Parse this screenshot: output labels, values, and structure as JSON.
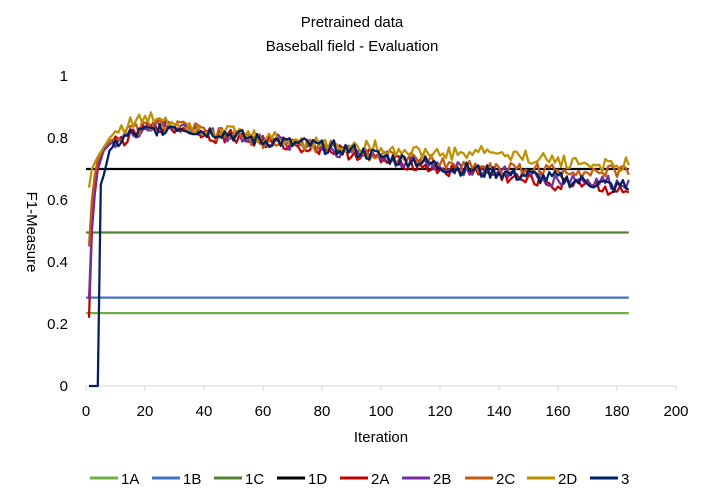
{
  "chart_data": {
    "type": "line",
    "title": "Pretrained data",
    "subtitle": "Baseball field - Evaluation",
    "xlabel": "Iteration",
    "ylabel": "F1-Measure",
    "xlim": [
      0,
      200
    ],
    "ylim": [
      0,
      1
    ],
    "x_ticks": [
      "0",
      "20",
      "40",
      "60",
      "80",
      "100",
      "120",
      "140",
      "160",
      "180",
      "200"
    ],
    "y_ticks": [
      "0",
      "0.2",
      "0.4",
      "0.6",
      "0.8",
      "1"
    ],
    "grid": false,
    "legend_position": "bottom",
    "series": [
      {
        "name": "1A",
        "color": "#70AD47",
        "x": [
          0,
          184
        ],
        "values": [
          0.235,
          0.235
        ]
      },
      {
        "name": "1B",
        "color": "#4472C4",
        "x": [
          0,
          184
        ],
        "values": [
          0.285,
          0.285
        ]
      },
      {
        "name": "1C",
        "color": "#548235",
        "x": [
          0,
          184
        ],
        "values": [
          0.495,
          0.495
        ]
      },
      {
        "name": "1D",
        "color": "#000000",
        "x": [
          0,
          184
        ],
        "values": [
          0.7,
          0.7
        ]
      },
      {
        "name": "2A",
        "color": "#C00000",
        "x": [
          1,
          2,
          3,
          4,
          6,
          8,
          10,
          15,
          20,
          25,
          30,
          35,
          40,
          45,
          50,
          55,
          60,
          65,
          70,
          75,
          80,
          85,
          90,
          95,
          100,
          105,
          110,
          115,
          120,
          125,
          130,
          135,
          140,
          145,
          150,
          155,
          160,
          165,
          170,
          175,
          180,
          182,
          184
        ],
        "values": [
          0.22,
          0.5,
          0.62,
          0.7,
          0.76,
          0.78,
          0.79,
          0.8,
          0.83,
          0.84,
          0.83,
          0.83,
          0.82,
          0.8,
          0.81,
          0.79,
          0.79,
          0.78,
          0.78,
          0.77,
          0.77,
          0.76,
          0.75,
          0.75,
          0.73,
          0.72,
          0.72,
          0.71,
          0.7,
          0.69,
          0.7,
          0.69,
          0.68,
          0.67,
          0.66,
          0.67,
          0.64,
          0.66,
          0.66,
          0.64,
          0.63,
          0.62,
          0.62
        ]
      },
      {
        "name": "2B",
        "color": "#7030A0",
        "x": [
          1,
          2,
          3,
          4,
          6,
          8,
          10,
          15,
          20,
          25,
          30,
          35,
          40,
          45,
          50,
          55,
          60,
          65,
          70,
          75,
          80,
          85,
          90,
          95,
          100,
          105,
          110,
          115,
          120,
          125,
          130,
          135,
          140,
          145,
          150,
          155,
          160,
          165,
          170,
          175,
          180,
          182,
          184
        ],
        "values": [
          0.28,
          0.52,
          0.64,
          0.71,
          0.76,
          0.78,
          0.79,
          0.81,
          0.83,
          0.84,
          0.84,
          0.83,
          0.82,
          0.81,
          0.81,
          0.8,
          0.79,
          0.79,
          0.78,
          0.78,
          0.77,
          0.76,
          0.76,
          0.75,
          0.74,
          0.73,
          0.72,
          0.72,
          0.71,
          0.7,
          0.7,
          0.69,
          0.69,
          0.68,
          0.68,
          0.67,
          0.66,
          0.67,
          0.66,
          0.66,
          0.65,
          0.66,
          0.65
        ]
      },
      {
        "name": "2C",
        "color": "#C55A11",
        "x": [
          1,
          2,
          3,
          4,
          6,
          8,
          10,
          15,
          20,
          25,
          30,
          35,
          40,
          45,
          50,
          55,
          60,
          65,
          70,
          75,
          80,
          85,
          90,
          95,
          100,
          105,
          110,
          115,
          120,
          125,
          130,
          135,
          140,
          145,
          150,
          155,
          160,
          165,
          170,
          175,
          180,
          182,
          184
        ],
        "values": [
          0.45,
          0.6,
          0.68,
          0.73,
          0.77,
          0.79,
          0.8,
          0.82,
          0.84,
          0.84,
          0.84,
          0.83,
          0.82,
          0.81,
          0.81,
          0.8,
          0.79,
          0.79,
          0.78,
          0.78,
          0.77,
          0.77,
          0.76,
          0.75,
          0.75,
          0.74,
          0.73,
          0.73,
          0.72,
          0.71,
          0.71,
          0.71,
          0.7,
          0.7,
          0.7,
          0.7,
          0.69,
          0.7,
          0.69,
          0.69,
          0.69,
          0.7,
          0.7
        ]
      },
      {
        "name": "2D",
        "color": "#BF9000",
        "x": [
          1,
          2,
          3,
          4,
          6,
          8,
          10,
          15,
          20,
          25,
          30,
          35,
          40,
          45,
          50,
          55,
          60,
          65,
          70,
          75,
          80,
          85,
          90,
          95,
          100,
          105,
          110,
          115,
          120,
          125,
          130,
          135,
          140,
          145,
          150,
          155,
          160,
          165,
          170,
          175,
          180,
          182,
          184
        ],
        "values": [
          0.64,
          0.7,
          0.72,
          0.74,
          0.77,
          0.8,
          0.82,
          0.85,
          0.86,
          0.87,
          0.85,
          0.84,
          0.83,
          0.82,
          0.82,
          0.81,
          0.8,
          0.8,
          0.79,
          0.79,
          0.78,
          0.78,
          0.77,
          0.77,
          0.77,
          0.76,
          0.76,
          0.75,
          0.75,
          0.75,
          0.75,
          0.76,
          0.75,
          0.74,
          0.74,
          0.73,
          0.73,
          0.72,
          0.72,
          0.71,
          0.71,
          0.71,
          0.72
        ]
      },
      {
        "name": "3",
        "color": "#002060",
        "x": [
          1,
          2,
          3,
          4,
          5,
          6,
          8,
          10,
          15,
          20,
          25,
          30,
          35,
          40,
          45,
          50,
          55,
          60,
          65,
          70,
          75,
          80,
          85,
          90,
          95,
          100,
          105,
          110,
          115,
          120,
          125,
          130,
          135,
          140,
          145,
          150,
          155,
          160,
          165,
          170,
          175,
          180,
          182,
          184
        ],
        "values": [
          0,
          0,
          0,
          0,
          0.65,
          0.68,
          0.76,
          0.78,
          0.81,
          0.82,
          0.83,
          0.84,
          0.83,
          0.82,
          0.82,
          0.81,
          0.8,
          0.79,
          0.79,
          0.78,
          0.78,
          0.77,
          0.77,
          0.76,
          0.75,
          0.74,
          0.73,
          0.73,
          0.72,
          0.71,
          0.7,
          0.7,
          0.69,
          0.69,
          0.68,
          0.68,
          0.67,
          0.67,
          0.66,
          0.66,
          0.65,
          0.64,
          0.65,
          0.63
        ]
      }
    ]
  }
}
